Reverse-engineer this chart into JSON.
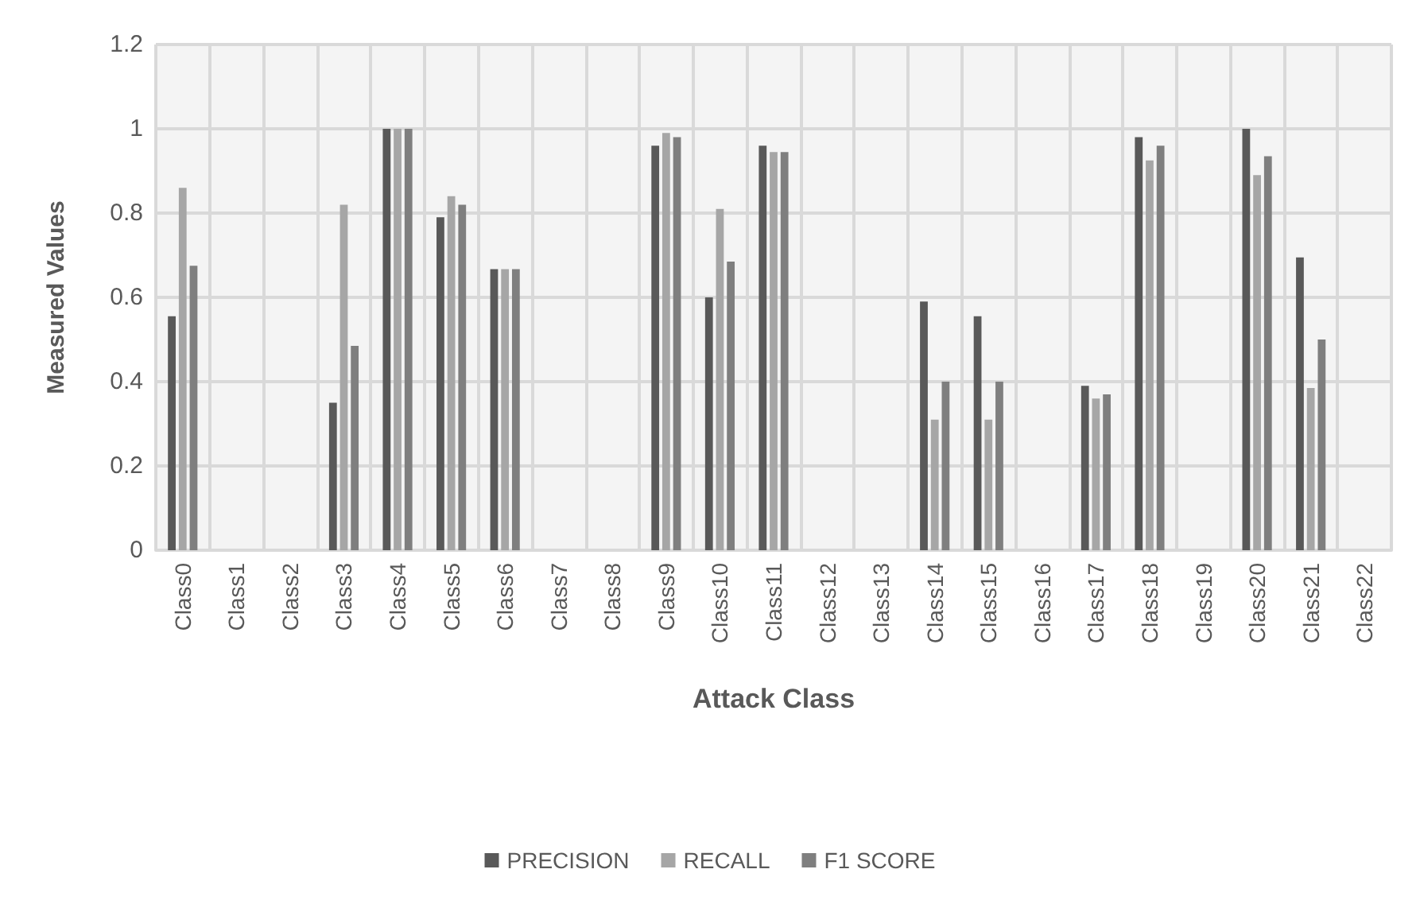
{
  "chart_data": {
    "type": "bar",
    "xlabel": "Attack Class",
    "ylabel": "Measured Values",
    "categories": [
      "Class0",
      "Class1",
      "Class2",
      "Class3",
      "Class4",
      "Class5",
      "Class6",
      "Class7",
      "Class8",
      "Class9",
      "Class10",
      "Class11",
      "Class12",
      "Class13",
      "Class14",
      "Class15",
      "Class16",
      "Class17",
      "Class18",
      "Class19",
      "Class20",
      "Class21",
      "Class22"
    ],
    "series": [
      {
        "name": "PRECISION",
        "color": "#595959",
        "values": [
          0.555,
          0,
          0,
          0.35,
          1,
          0.79,
          0.667,
          0,
          0,
          0.96,
          0.6,
          0.96,
          0,
          0,
          0.59,
          0.555,
          0,
          0.39,
          0.98,
          0,
          1,
          0.695,
          0
        ]
      },
      {
        "name": "RECALL",
        "color": "#a6a6a6",
        "values": [
          0.86,
          0,
          0,
          0.82,
          1,
          0.84,
          0.667,
          0,
          0,
          0.99,
          0.81,
          0.945,
          0,
          0,
          0.31,
          0.31,
          0,
          0.36,
          0.925,
          0,
          0.89,
          0.385,
          0
        ]
      },
      {
        "name": "F1 SCORE",
        "color": "#7f7f7f",
        "values": [
          0.675,
          0,
          0,
          0.485,
          1,
          0.82,
          0.667,
          0,
          0,
          0.98,
          0.685,
          0.945,
          0,
          0,
          0.4,
          0.4,
          0,
          0.37,
          0.96,
          0,
          0.935,
          0.5,
          0
        ]
      }
    ],
    "ylim": [
      0,
      1.2
    ],
    "yticks": [
      0,
      0.2,
      0.4,
      0.6,
      0.8,
      1,
      1.2
    ],
    "grid": true,
    "legend": "bottom"
  }
}
